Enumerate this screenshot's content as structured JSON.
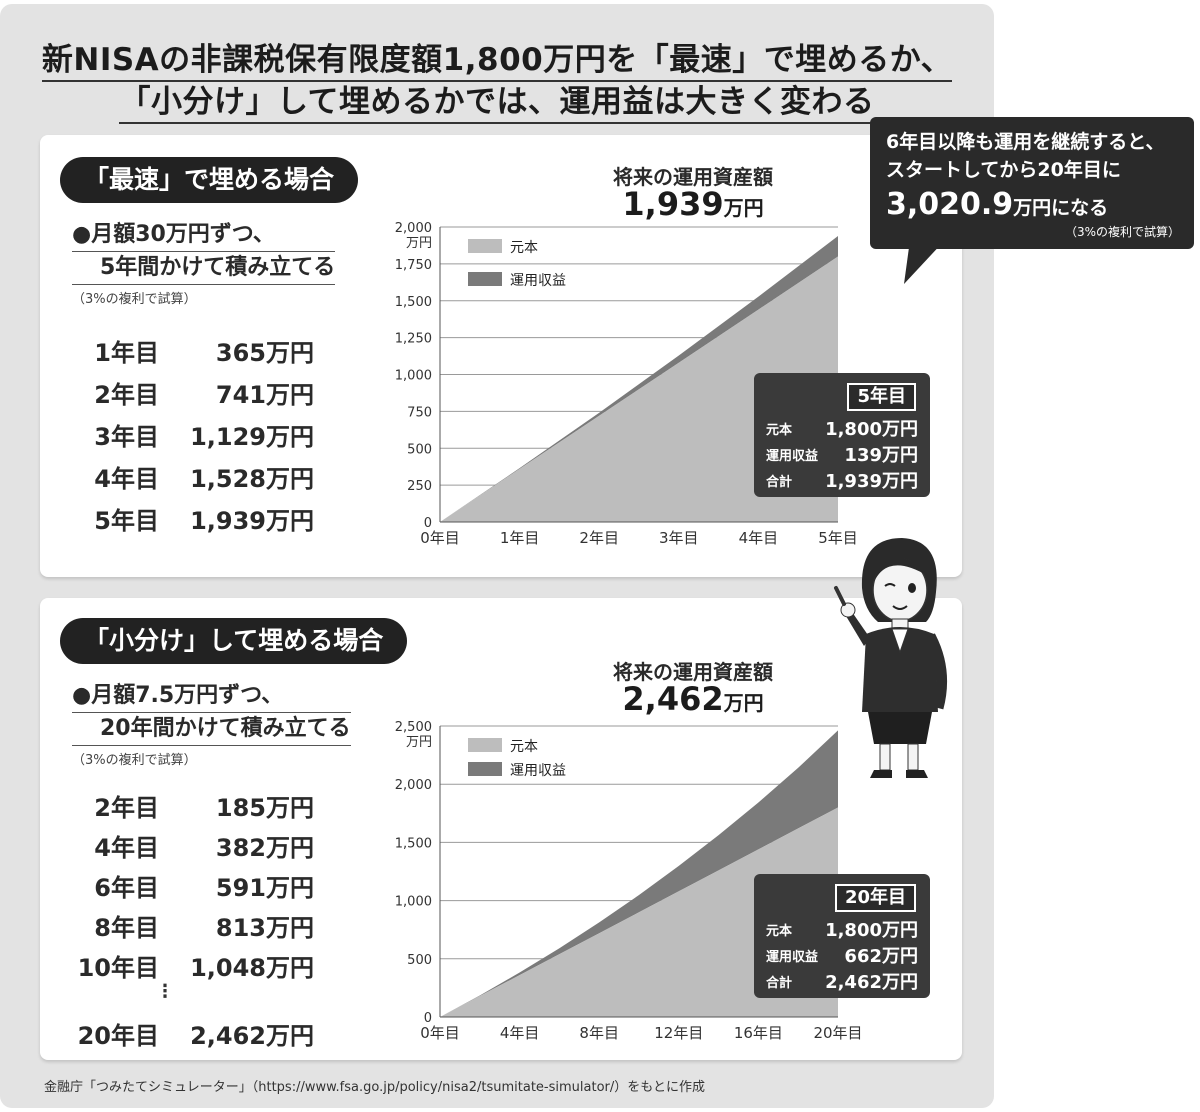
{
  "headline": {
    "line1": "新NISAの非課税保有限度額1,800万円を「最速」で埋めるか、",
    "line2": "「小分け」して埋めるかでは、運用益は大きく変わる"
  },
  "callout": {
    "line1": "6年目以降も運用を継続すると、",
    "line2": "スタートしてから20年目に",
    "amount": "3,020.9",
    "amount_suffix": "万円になる",
    "note": "（3%の複利で試算）"
  },
  "panel1": {
    "pill": "「最速」で埋める場合",
    "plan_line1": "●月額30万円ずつ、",
    "plan_line2": "5年間かけて積み立てる",
    "note": "（3%の複利で試算）",
    "rows": [
      {
        "year": "1年目",
        "value": "365万円"
      },
      {
        "year": "2年目",
        "value": "741万円"
      },
      {
        "year": "3年目",
        "value": "1,129万円"
      },
      {
        "year": "4年目",
        "value": "1,528万円"
      },
      {
        "year": "5年目",
        "value": "1,939万円"
      }
    ],
    "future_label": "将来の運用資産額",
    "future_value": "1,939",
    "future_unit": "万円",
    "info": {
      "header": "5年目",
      "items": [
        {
          "key": "元本",
          "value": "1,800万円"
        },
        {
          "key": "運用収益",
          "value": "139万円"
        },
        {
          "key": "合計",
          "value": "1,939万円"
        }
      ]
    }
  },
  "panel2": {
    "pill": "「小分け」して埋める場合",
    "plan_line1": "●月額7.5万円ずつ、",
    "plan_line2": "20年間かけて積み立てる",
    "note": "（3%の複利で試算）",
    "rows": [
      {
        "year": "2年目",
        "value": "185万円"
      },
      {
        "year": "4年目",
        "value": "382万円"
      },
      {
        "year": "6年目",
        "value": "591万円"
      },
      {
        "year": "8年目",
        "value": "813万円"
      },
      {
        "year": "10年目",
        "value": "1,048万円"
      },
      {
        "year": "20年目",
        "value": "2,462万円"
      }
    ],
    "dots": "⋮",
    "future_label": "将来の運用資産額",
    "future_value": "2,462",
    "future_unit": "万円",
    "info": {
      "header": "20年目",
      "items": [
        {
          "key": "元本",
          "value": "1,800万円"
        },
        {
          "key": "運用収益",
          "value": "662万円"
        },
        {
          "key": "合計",
          "value": "2,462万円"
        }
      ]
    }
  },
  "source": "金融庁「つみたてシミュレーター」（https://www.fsa.go.jp/policy/nisa2/tsumitate-simulator/）をもとに作成",
  "colors": {
    "principal": "#bdbdbd",
    "gain": "#7a7a7a",
    "dark": "#2a2a2a"
  },
  "chart_data": [
    {
      "type": "area",
      "stacked": true,
      "x_ticks": [
        "0年目",
        "1年目",
        "2年目",
        "3年目",
        "4年目",
        "5年目"
      ],
      "x": [
        0,
        1,
        2,
        3,
        4,
        5
      ],
      "y_unit": "万円",
      "ylim": [
        0,
        2000
      ],
      "y_ticks": [
        "0",
        "250",
        "500",
        "750",
        "1,000",
        "1,250",
        "1,500",
        "1,750",
        "2,000"
      ],
      "grid": true,
      "legend": "top-left",
      "series": [
        {
          "name": "元本",
          "values": [
            0,
            360,
            720,
            1080,
            1440,
            1800
          ]
        },
        {
          "name": "運用収益",
          "values": [
            0,
            5,
            21,
            49,
            88,
            139
          ]
        }
      ]
    },
    {
      "type": "area",
      "stacked": true,
      "x_ticks": [
        "0年目",
        "4年目",
        "8年目",
        "12年目",
        "16年目",
        "20年目"
      ],
      "x": [
        0,
        2,
        4,
        6,
        8,
        10,
        12,
        14,
        16,
        18,
        20
      ],
      "y_unit": "万円",
      "ylim": [
        0,
        2500
      ],
      "y_ticks": [
        "0",
        "500",
        "1,000",
        "1,500",
        "2,000",
        "2,500"
      ],
      "grid": true,
      "legend": "top-left",
      "series": [
        {
          "name": "元本",
          "values": [
            0,
            180,
            360,
            540,
            720,
            900,
            1080,
            1260,
            1440,
            1620,
            1800
          ]
        },
        {
          "name": "運用収益",
          "values": [
            0,
            5,
            22,
            51,
            93,
            148,
            218,
            302,
            403,
            521,
            662
          ]
        }
      ]
    }
  ]
}
